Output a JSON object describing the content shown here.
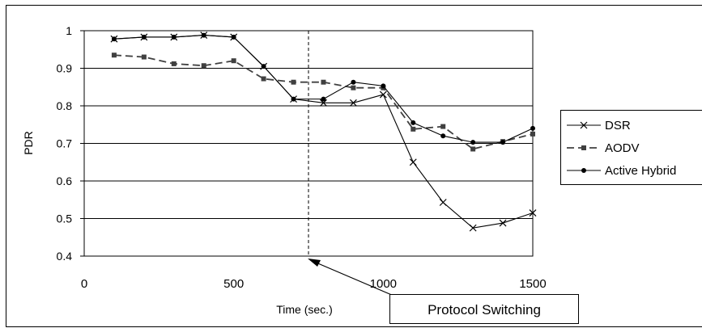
{
  "chart_data": {
    "type": "line",
    "title": "",
    "xlabel": "Time (sec.)",
    "ylabel": "PDR",
    "xlim": [
      0,
      1500
    ],
    "ylim": [
      0.4,
      1.0
    ],
    "x_ticks": [
      "0",
      "500",
      "1000",
      "1500"
    ],
    "y_ticks": [
      "0.4",
      "0.5",
      "0.6",
      "0.7",
      "0.8",
      "0.9",
      "1"
    ],
    "grid": "horizontal",
    "legend_position": "right",
    "x": [
      100,
      200,
      300,
      400,
      500,
      600,
      700,
      800,
      900,
      1000,
      1100,
      1200,
      1300,
      1400,
      1500
    ],
    "series": [
      {
        "name": "DSR",
        "marker": "x",
        "line_style": "solid",
        "color": "#000000",
        "values": [
          0.978,
          0.983,
          0.983,
          0.988,
          0.983,
          0.905,
          0.818,
          0.808,
          0.808,
          0.83,
          0.65,
          0.543,
          0.475,
          0.488,
          0.515
        ]
      },
      {
        "name": "AODV",
        "marker": "square",
        "line_style": "dashed",
        "color": "#404040",
        "values": [
          0.935,
          0.93,
          0.912,
          0.907,
          0.92,
          0.872,
          0.863,
          0.863,
          0.848,
          0.848,
          0.738,
          0.745,
          0.685,
          0.705,
          0.725
        ]
      },
      {
        "name": "Active Hybrid",
        "marker": "circle",
        "line_style": "solid",
        "color": "#000000",
        "values": [
          0.978,
          0.983,
          0.983,
          0.988,
          0.983,
          0.905,
          0.818,
          0.818,
          0.863,
          0.853,
          0.755,
          0.72,
          0.703,
          0.703,
          0.74
        ]
      }
    ],
    "annotations": [
      {
        "type": "vertical-dashed-line",
        "x": 750
      },
      {
        "type": "callout-box",
        "text": "Protocol Switching",
        "points_to_x": 750
      }
    ]
  }
}
